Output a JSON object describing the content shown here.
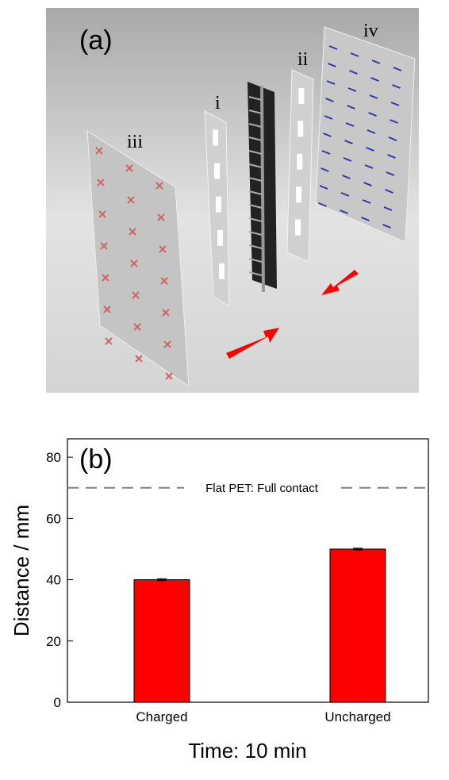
{
  "panel_a": {
    "label": "(a)",
    "sheet_labels": [
      "iii",
      "i",
      "ii",
      "iv"
    ]
  },
  "chart_data": {
    "type": "bar",
    "panel_label": "(b)",
    "y_label": "Distance / mm",
    "x_label": "Time: 10 min",
    "categories": [
      "Charged",
      "Uncharged"
    ],
    "values": [
      40,
      50
    ],
    "errors": [
      0.3,
      0.3
    ],
    "color": "#ff0000",
    "ylim": [
      0,
      86
    ],
    "yticks": [
      0,
      20,
      40,
      60,
      80
    ],
    "reference_line": {
      "value": 70,
      "label": "Flat PET: Full contact"
    }
  }
}
